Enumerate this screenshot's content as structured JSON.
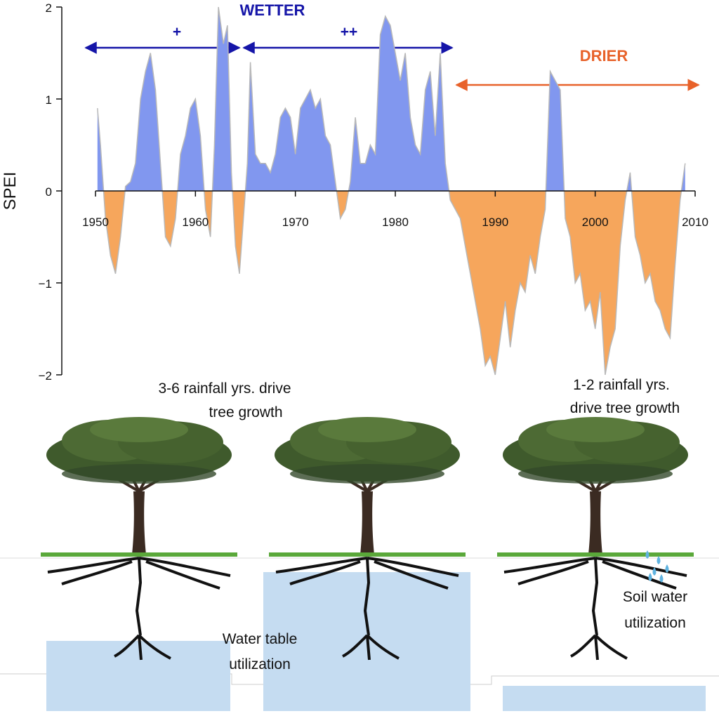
{
  "chart_data": {
    "type": "area",
    "y_label": "SPEI",
    "x": [
      1950.2,
      1950.5,
      1951,
      1951.5,
      1952,
      1952.5,
      1953,
      1953.5,
      1954,
      1954.5,
      1955,
      1955.5,
      1956,
      1956.5,
      1957,
      1957.5,
      1958,
      1958.5,
      1959,
      1959.5,
      1960,
      1960.5,
      1961,
      1961.5,
      1961.9,
      1962.3,
      1962.8,
      1963.2,
      1963.6,
      1964,
      1964.4,
      1964.8,
      1965.2,
      1965.5,
      1966,
      1966.5,
      1967,
      1967.5,
      1968,
      1968.5,
      1969,
      1969.5,
      1970,
      1970.5,
      1971,
      1971.5,
      1972,
      1972.5,
      1973,
      1973.5,
      1974,
      1974.5,
      1975,
      1975.5,
      1976,
      1976.5,
      1977,
      1977.5,
      1978,
      1978.5,
      1979,
      1979.5,
      1980,
      1980.5,
      1981,
      1981.5,
      1982,
      1982.5,
      1983,
      1983.5,
      1984,
      1984.5,
      1985,
      1985.5,
      1986,
      1986.5,
      1987,
      1987.5,
      1988,
      1988.5,
      1989,
      1989.5,
      1990,
      1990.5,
      1991,
      1991.5,
      1992,
      1992.5,
      1993,
      1993.5,
      1994,
      1994.5,
      1995,
      1995.5,
      1996,
      1996.5,
      1997,
      1997.5,
      1998,
      1998.5,
      1999,
      1999.5,
      2000,
      2000.5,
      2001,
      2001.5,
      2002,
      2002.5,
      2003,
      2003.5,
      2004,
      2004.5,
      2005,
      2005.5,
      2006,
      2006.5,
      2007,
      2007.5,
      2008,
      2008.5,
      2009
    ],
    "values": [
      0.9,
      0.5,
      -0.3,
      -0.7,
      -0.9,
      -0.5,
      0.05,
      0.1,
      0.3,
      1.0,
      1.3,
      1.5,
      1.1,
      0.3,
      -0.5,
      -0.6,
      -0.3,
      0.4,
      0.6,
      0.9,
      1.0,
      0.6,
      -0.2,
      -0.5,
      0.5,
      2.0,
      1.6,
      1.8,
      0.2,
      -0.6,
      -0.9,
      -0.3,
      0.3,
      1.4,
      0.4,
      0.3,
      0.3,
      0.2,
      0.4,
      0.8,
      0.9,
      0.8,
      0.4,
      0.9,
      1.0,
      1.1,
      0.9,
      1.0,
      0.6,
      0.5,
      0.1,
      -0.3,
      -0.2,
      0.1,
      0.8,
      0.3,
      0.3,
      0.5,
      0.4,
      1.7,
      1.9,
      1.8,
      1.5,
      1.2,
      1.5,
      0.8,
      0.5,
      0.4,
      1.1,
      1.3,
      0.6,
      1.5,
      0.3,
      -0.1,
      -0.2,
      -0.3,
      -0.6,
      -0.9,
      -1.2,
      -1.5,
      -1.9,
      -1.8,
      -2.0,
      -1.6,
      -1.2,
      -1.7,
      -1.3,
      -1.0,
      -1.1,
      -0.7,
      -0.9,
      -0.5,
      -0.2,
      1.3,
      1.2,
      1.1,
      -0.3,
      -0.5,
      -1.0,
      -0.9,
      -1.3,
      -1.2,
      -1.5,
      -1.1,
      -2.0,
      -1.7,
      -1.5,
      -0.6,
      -0.1,
      0.2,
      -0.5,
      -0.7,
      -1.0,
      -0.9,
      -1.2,
      -1.3,
      -1.5,
      -1.6,
      -0.8,
      -0.1,
      0.3
    ],
    "colors": {
      "positive": "#8197ef",
      "negative": "#f6a65c",
      "line": "#b8b8b8"
    },
    "xlim": [
      1950,
      2010
    ],
    "ylim": [
      -2,
      2
    ],
    "xticks": [
      1950,
      1960,
      1970,
      1980,
      1990,
      2000,
      2010
    ],
    "yticks": [
      {
        "value": -2,
        "label": "−2"
      },
      {
        "value": -1,
        "label": "−1"
      },
      0,
      1,
      2
    ],
    "annotations": {
      "wetter": "WETTER",
      "plus": "+",
      "plusplus": "++",
      "drier": "DRIER",
      "left_note": [
        "3-6 rainfall yrs. drive",
        "tree growth"
      ],
      "right_note": [
        "1-2 rainfall yrs.",
        "drive tree growth"
      ],
      "water_table": [
        "Water table",
        "utilization"
      ],
      "soil_water": [
        "Soil water",
        "utilization"
      ]
    }
  }
}
